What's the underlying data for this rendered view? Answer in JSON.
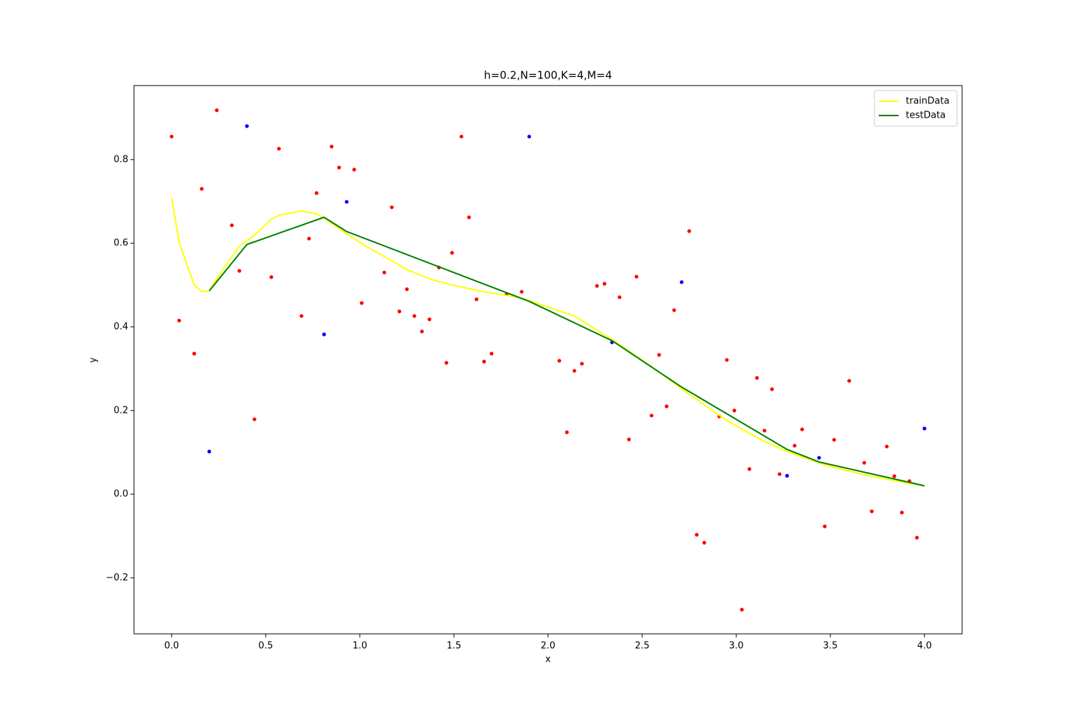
{
  "chart_data": {
    "type": "line",
    "title": "h=0.2,N=100,K=4,M=4",
    "x_label": "x",
    "y_label": "y",
    "xlim": [
      -0.2,
      4.2
    ],
    "ylim": [
      -0.334,
      0.977
    ],
    "xticks": [
      {
        "value": 0,
        "label": "0.0"
      },
      0.5,
      {
        "value": 1,
        "label": "1.0"
      },
      1.5,
      {
        "value": 2,
        "label": "2.0"
      },
      2.5,
      {
        "value": 3,
        "label": "3.0"
      },
      3.5,
      {
        "value": 4,
        "label": "4.0"
      }
    ],
    "yticks": [
      {
        "value": -0.2,
        "label": "−0.2"
      },
      {
        "value": 0,
        "label": "0.0"
      },
      0.2,
      0.4,
      0.6,
      0.8
    ],
    "legend": "upper right",
    "series": [
      {
        "name": "trainData",
        "color": "#ffff00",
        "x": [
          0,
          0.04,
          0.12,
          0.16,
          0.2,
          0.28,
          0.36,
          0.44,
          0.53,
          0.57,
          0.69,
          0.77,
          0.81,
          0.93,
          1.01,
          1.13,
          1.25,
          1.37,
          1.49,
          1.66,
          1.86,
          2.14,
          2.34,
          2.55,
          2.75,
          2.95,
          3.15,
          3.27,
          3.47,
          3.68,
          3.88,
          4.0
        ],
        "values": [
          0.708,
          0.602,
          0.5,
          0.484,
          0.486,
          0.542,
          0.594,
          0.619,
          0.657,
          0.667,
          0.677,
          0.67,
          0.66,
          0.623,
          0.599,
          0.568,
          0.537,
          0.515,
          0.5,
          0.484,
          0.469,
          0.426,
          0.37,
          0.305,
          0.239,
          0.176,
          0.126,
          0.102,
          0.07,
          0.046,
          0.029,
          0.02
        ]
      },
      {
        "name": "testData",
        "color": "#008000",
        "x": [
          0.2,
          0.4,
          0.81,
          0.93,
          1.9,
          2.34,
          2.71,
          3.27,
          3.44,
          4.0
        ],
        "values": [
          0.486,
          0.597,
          0.662,
          0.628,
          0.461,
          0.367,
          0.256,
          0.107,
          0.077,
          0.02
        ]
      }
    ],
    "points": [
      {
        "color": "#ff0000",
        "x": [
          0,
          0.04,
          0.12,
          0.16,
          0.24,
          0.32,
          0.36,
          0.44,
          0.53,
          0.57,
          0.69,
          0.73,
          0.77,
          0.85,
          0.89,
          0.97,
          1.01,
          1.13,
          1.17,
          1.21,
          1.25,
          1.29,
          1.33,
          1.37,
          1.42,
          1.46,
          1.49,
          1.54,
          1.58,
          1.62,
          1.66,
          1.7,
          1.78,
          1.86,
          2.06,
          2.1,
          2.14,
          2.18,
          2.26,
          2.3,
          2.38,
          2.43,
          2.47,
          2.55,
          2.59,
          2.63,
          2.67,
          2.75,
          2.79,
          2.83,
          2.91,
          2.95,
          2.99,
          3.03,
          3.07,
          3.11,
          3.15,
          3.19,
          3.23,
          3.31,
          3.35,
          3.47,
          3.52,
          3.6,
          3.68,
          3.72,
          3.8,
          3.84,
          3.88,
          3.92,
          3.96
        ],
        "values": [
          0.855,
          0.415,
          0.336,
          0.73,
          0.918,
          0.643,
          0.534,
          0.179,
          0.519,
          0.826,
          0.426,
          0.611,
          0.72,
          0.831,
          0.781,
          0.776,
          0.457,
          0.53,
          0.686,
          0.437,
          0.49,
          0.426,
          0.389,
          0.418,
          0.542,
          0.314,
          0.577,
          0.855,
          0.662,
          0.466,
          0.317,
          0.336,
          0.478,
          0.484,
          0.319,
          0.148,
          0.295,
          0.312,
          0.498,
          0.503,
          0.471,
          0.131,
          0.52,
          0.188,
          0.333,
          0.21,
          0.44,
          0.629,
          -0.097,
          -0.116,
          0.186,
          0.321,
          0.2,
          -0.276,
          0.06,
          0.278,
          0.152,
          0.251,
          0.048,
          0.116,
          0.155,
          -0.077,
          0.13,
          0.271,
          0.075,
          -0.041,
          0.114,
          0.043,
          -0.044,
          0.031,
          -0.104
        ]
      },
      {
        "color": "#0000ff",
        "x": [
          0.2,
          0.4,
          0.81,
          0.93,
          1.9,
          2.34,
          2.71,
          3.27,
          3.44,
          4.0
        ],
        "values": [
          0.102,
          0.88,
          0.382,
          0.699,
          0.855,
          0.363,
          0.507,
          0.044,
          0.087,
          0.157
        ]
      }
    ]
  }
}
